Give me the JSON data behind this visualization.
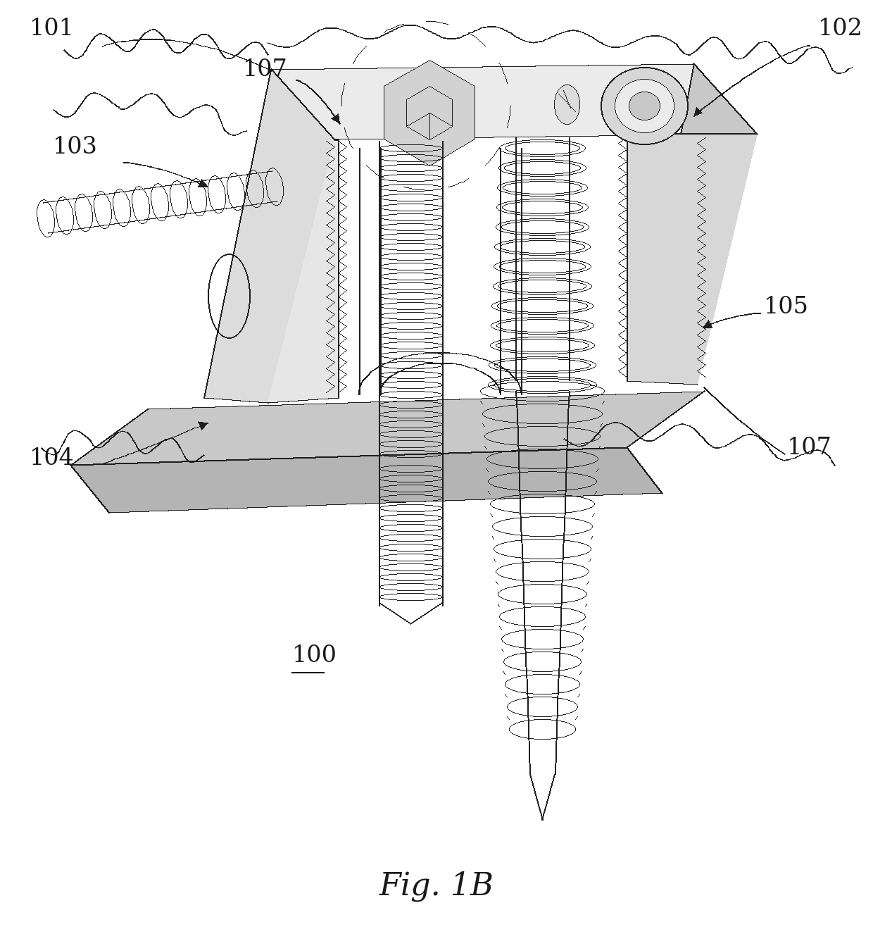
{
  "title": "Fig. 1B",
  "label_100": "100",
  "label_101": "101",
  "label_102": "102",
  "label_103": "103",
  "label_104": "104",
  "label_105": "105",
  "label_107a": "107",
  "label_107b": "107",
  "bg_color": "#ffffff",
  "line_color": "#1a1a1a",
  "fig_label_size": 32,
  "label_fs": 24
}
